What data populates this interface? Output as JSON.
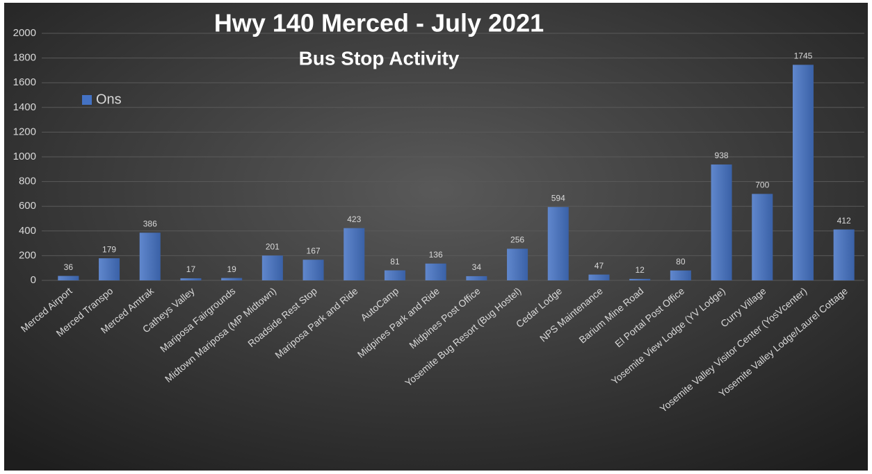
{
  "chart_data": {
    "type": "bar",
    "title": "Hwy 140 Merced - July 2021",
    "subtitle": "Bus Stop Activity",
    "categories": [
      "Merced Airport",
      "Merced Transpo",
      "Merced Amtrak",
      "Catheys Valley",
      "Mariposa Fairgrounds",
      "Midtown Mariposa (MP Midtown)",
      "Roadside Rest Stop",
      "Mariposa Park and Ride",
      "AutoCamp",
      "Midpines Park and Ride",
      "Midpines Post Office",
      "Yosemite Bug Resort (Bug Hostel)",
      "Cedar Lodge",
      "NPS Maintenance",
      "Barium Mine Road",
      "El Portal Post Office",
      "Yosemite View Lodge (YV Lodge)",
      "Curry Village",
      "Yosemite Valley Visitor Center (YosVcenter)",
      "Yosemite Valley Lodge/Laurel Cottage"
    ],
    "series": [
      {
        "name": "Ons",
        "color": "#4472c4",
        "values": [
          36,
          179,
          386,
          17,
          19,
          201,
          167,
          423,
          81,
          136,
          34,
          256,
          594,
          47,
          12,
          80,
          938,
          700,
          1745,
          412
        ]
      }
    ],
    "ylim": [
      0,
      2000
    ],
    "yticks": [
      0,
      200,
      400,
      600,
      800,
      1000,
      1200,
      1400,
      1600,
      1800,
      2000
    ],
    "grid": true,
    "legend": "upper left"
  }
}
